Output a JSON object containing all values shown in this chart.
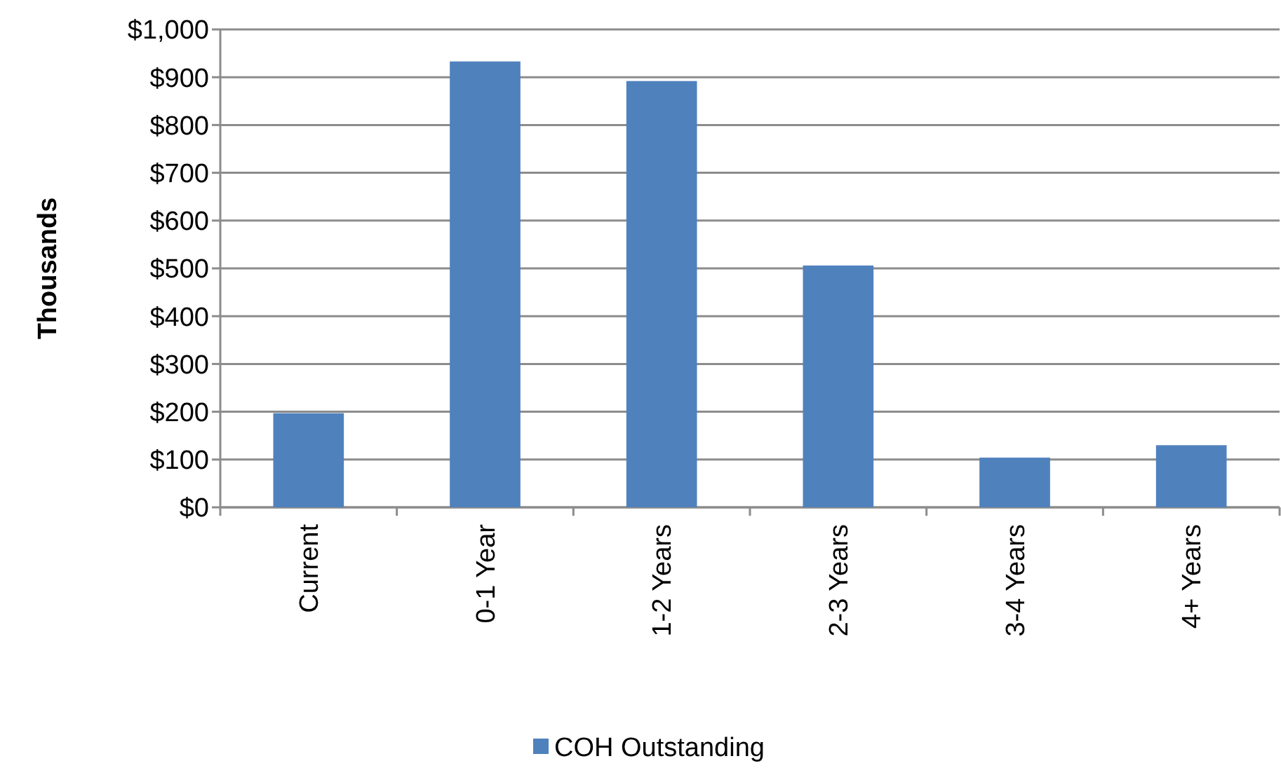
{
  "chart_data": {
    "type": "bar",
    "ylabel": "Thousands",
    "categories": [
      "Current",
      "0-1 Year",
      "1-2 Years",
      "2-3 Years",
      "3-4 Years",
      "4+ Years"
    ],
    "series": [
      {
        "name": "COH Outstanding",
        "color": "#4f81bd",
        "values": [
          197,
          933,
          892,
          506,
          104,
          130
        ]
      }
    ],
    "ylim": [
      0,
      1000
    ],
    "yticks": [
      {
        "value": 0,
        "label": "$0"
      },
      {
        "value": 100,
        "label": "$100"
      },
      {
        "value": 200,
        "label": "$200"
      },
      {
        "value": 300,
        "label": "$300"
      },
      {
        "value": 400,
        "label": "$400"
      },
      {
        "value": 500,
        "label": "$500"
      },
      {
        "value": 600,
        "label": "$600"
      },
      {
        "value": 700,
        "label": "$700"
      },
      {
        "value": 800,
        "label": "$800"
      },
      {
        "value": 900,
        "label": "$900"
      },
      {
        "value": 1000,
        "label": "$1,000"
      }
    ],
    "grid": "y",
    "legend": "bottom"
  }
}
